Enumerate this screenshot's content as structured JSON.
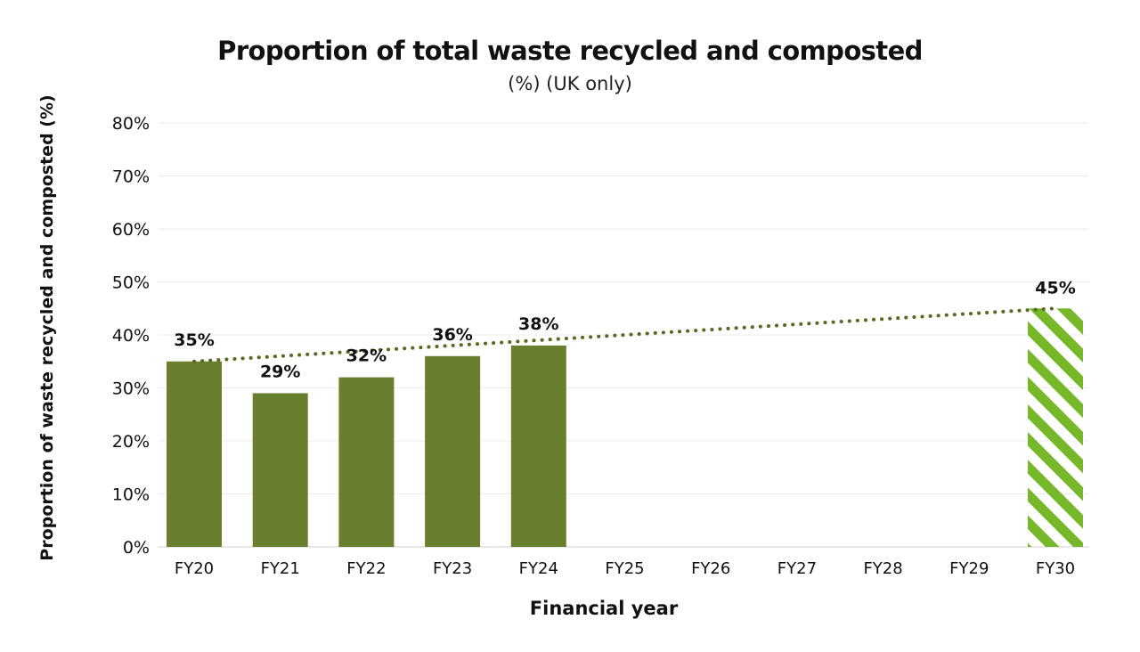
{
  "chart_data": {
    "type": "bar",
    "title": "Proportion of total waste recycled and composted",
    "subtitle": "(%) (UK only)",
    "xlabel": "Financial year",
    "ylabel": "Proportion of waste recycled and composted (%)",
    "categories": [
      "FY20",
      "FY21",
      "FY22",
      "FY23",
      "FY24",
      "FY25",
      "FY26",
      "FY27",
      "FY28",
      "FY29",
      "FY30"
    ],
    "values": [
      35,
      29,
      32,
      36,
      38,
      null,
      null,
      null,
      null,
      null,
      45
    ],
    "data_labels": [
      "35%",
      "29%",
      "32%",
      "36%",
      "38%",
      "",
      "",
      "",
      "",
      "",
      "45%"
    ],
    "target_category": "FY30",
    "y_ticks": [
      0,
      10,
      20,
      30,
      40,
      50,
      60,
      70,
      80
    ],
    "y_tick_labels": [
      "0%",
      "10%",
      "20%",
      "30%",
      "40%",
      "50%",
      "60%",
      "70%",
      "80%"
    ],
    "ylim": [
      0,
      80
    ],
    "grid": true,
    "trendline": {
      "style": "dotted",
      "from_category": "FY20",
      "from_value": 35,
      "to_category": "FY30",
      "to_value": 45
    },
    "colors": {
      "bar": "#6a7f2e",
      "target": "#77b82a",
      "trend": "#556b1f",
      "grid": "#ececec"
    }
  }
}
